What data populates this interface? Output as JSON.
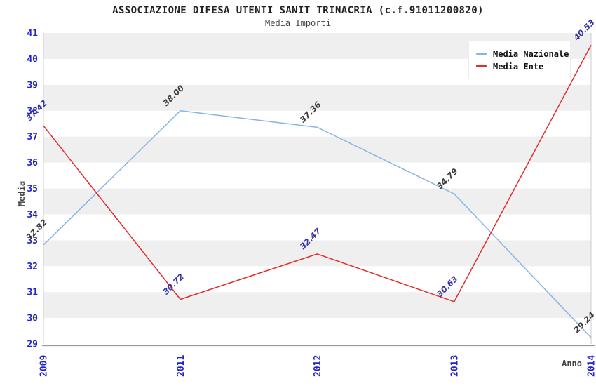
{
  "title": "ASSOCIAZIONE DIFESA UTENTI SANIT TRINACRIA (c.f.91011200820)",
  "subtitle": "Media Importi",
  "chart_data": {
    "type": "line",
    "title": "ASSOCIAZIONE DIFESA UTENTI SANIT TRINACRIA (c.f.91011200820)",
    "subtitle": "Media Importi",
    "categories": [
      "2009",
      "2011",
      "2012",
      "2013",
      "2014"
    ],
    "series": [
      {
        "name": "Media Nazionale",
        "values": [
          32.82,
          38.0,
          37.36,
          34.79,
          29.24
        ],
        "color": "#87B4E4",
        "label_color": "#3A3A3A"
      },
      {
        "name": "Media Ente",
        "values": [
          37.42,
          30.72,
          32.47,
          30.63,
          40.53
        ],
        "color": "#E32B2B",
        "label_color": "#3434A8"
      }
    ],
    "xlabel": "Anno",
    "ylabel": "Media",
    "ylim": [
      29,
      41
    ],
    "ytick_step": 1,
    "grid": "alternating-horizontal-bands",
    "legend_position": "top-right",
    "point_labels": "values shown at each point, rotated 45°",
    "colors": {
      "band_gray": "#EFEFEF",
      "plot_background": "#FFFFFF",
      "plot_border": "#CCCCCC",
      "bottom_axis_line": "#999999",
      "tick_label_blue": "#2323CB"
    }
  }
}
